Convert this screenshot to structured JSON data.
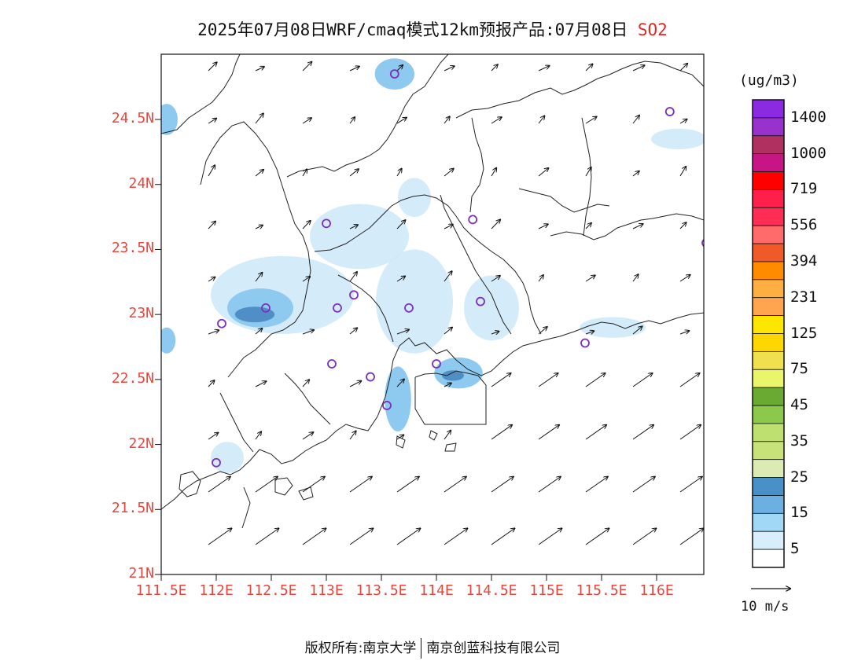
{
  "title": {
    "main": "2025年07月08日WRF/cmaq模式12km预报产品:07月08日",
    "pollutant": "SO2"
  },
  "axes": {
    "lat_labels": [
      "24.5N",
      "24N",
      "23.5N",
      "23N",
      "22.5N",
      "22N",
      "21.5N",
      "21N"
    ],
    "lat_values": [
      24.5,
      24.0,
      23.5,
      23.0,
      22.5,
      22.0,
      21.5,
      21.0
    ],
    "lon_labels": [
      "111.5E",
      "112E",
      "112.5E",
      "113E",
      "113.5E",
      "114E",
      "114.5E",
      "115E",
      "115.5E",
      "116E"
    ],
    "lon_values": [
      111.5,
      112.0,
      112.5,
      113.0,
      113.5,
      114.0,
      114.5,
      115.0,
      115.5,
      116.0
    ]
  },
  "colorbar": {
    "unit": "(ug/m3)",
    "labels": [
      "1400",
      "1000",
      "719",
      "556",
      "394",
      "231",
      "125",
      "75",
      "45",
      "35",
      "25",
      "15",
      "5"
    ],
    "colors_top_to_bottom": [
      "#8a2be2",
      "#9932cc",
      "#b03060",
      "#c71585",
      "#ff0000",
      "#ff1f4b",
      "#ff2d55",
      "#ff6a6a",
      "#f05a28",
      "#ff8c00",
      "#ffae42",
      "#ffa54f",
      "#ffe600",
      "#ffd700",
      "#f0e050",
      "#eaf56a",
      "#6aaa32",
      "#8cc84b",
      "#bde070",
      "#c8e27a",
      "#dcebb4",
      "#4a90c8",
      "#6bb0e0",
      "#a0d8f5",
      "#d8eefa",
      "#ffffff"
    ]
  },
  "vector_reference": {
    "label": "10 m/s"
  },
  "footer": {
    "left": "版权所有:南京大学",
    "right": "南京创蓝科技有限公司"
  },
  "map_data": {
    "type": "contour-map",
    "variable": "SO2",
    "lon_range": [
      111.5,
      116.6
    ],
    "lat_range": [
      21.0,
      25.0
    ],
    "concentration_blobs": [
      {
        "lon": 112.6,
        "lat": 23.15,
        "rlon": 0.65,
        "rlat": 0.3,
        "level": "light"
      },
      {
        "lon": 112.4,
        "lat": 23.05,
        "rlon": 0.3,
        "rlat": 0.15,
        "level": "medium"
      },
      {
        "lon": 112.35,
        "lat": 23.0,
        "rlon": 0.18,
        "rlat": 0.06,
        "level": "dark"
      },
      {
        "lon": 113.3,
        "lat": 23.6,
        "rlon": 0.45,
        "rlat": 0.25,
        "level": "light"
      },
      {
        "lon": 113.8,
        "lat": 23.1,
        "rlon": 0.35,
        "rlat": 0.4,
        "level": "light"
      },
      {
        "lon": 114.5,
        "lat": 23.05,
        "rlon": 0.25,
        "rlat": 0.25,
        "level": "light"
      },
      {
        "lon": 114.2,
        "lat": 22.55,
        "rlon": 0.22,
        "rlat": 0.12,
        "level": "medium"
      },
      {
        "lon": 114.15,
        "lat": 22.53,
        "rlon": 0.1,
        "rlat": 0.04,
        "level": "dark"
      },
      {
        "lon": 113.65,
        "lat": 22.35,
        "rlon": 0.12,
        "rlat": 0.25,
        "level": "medium"
      },
      {
        "lon": 113.62,
        "lat": 24.85,
        "rlon": 0.18,
        "rlat": 0.12,
        "level": "medium"
      },
      {
        "lon": 111.55,
        "lat": 24.5,
        "rlon": 0.1,
        "rlat": 0.12,
        "level": "medium"
      },
      {
        "lon": 111.55,
        "lat": 22.8,
        "rlon": 0.08,
        "rlat": 0.1,
        "level": "medium"
      },
      {
        "lon": 115.6,
        "lat": 22.9,
        "rlon": 0.3,
        "rlat": 0.08,
        "level": "light"
      },
      {
        "lon": 116.2,
        "lat": 24.35,
        "rlon": 0.25,
        "rlat": 0.08,
        "level": "light"
      },
      {
        "lon": 112.1,
        "lat": 21.9,
        "rlon": 0.15,
        "rlat": 0.12,
        "level": "light"
      },
      {
        "lon": 113.8,
        "lat": 23.9,
        "rlon": 0.15,
        "rlat": 0.15,
        "level": "light"
      }
    ],
    "stations": [
      {
        "lon": 113.62,
        "lat": 24.85
      },
      {
        "lon": 116.12,
        "lat": 24.56
      },
      {
        "lon": 113.0,
        "lat": 23.7
      },
      {
        "lon": 114.33,
        "lat": 23.73
      },
      {
        "lon": 116.45,
        "lat": 23.55
      },
      {
        "lon": 112.45,
        "lat": 23.05
      },
      {
        "lon": 112.05,
        "lat": 22.93
      },
      {
        "lon": 113.1,
        "lat": 23.05
      },
      {
        "lon": 113.25,
        "lat": 23.15
      },
      {
        "lon": 113.75,
        "lat": 23.05
      },
      {
        "lon": 114.4,
        "lat": 23.1
      },
      {
        "lon": 115.35,
        "lat": 22.78
      },
      {
        "lon": 113.05,
        "lat": 22.62
      },
      {
        "lon": 113.4,
        "lat": 22.52
      },
      {
        "lon": 114.0,
        "lat": 22.62
      },
      {
        "lon": 113.55,
        "lat": 22.3
      },
      {
        "lon": 112.0,
        "lat": 21.86
      }
    ],
    "wind_field": "south-west monsoon flow, stronger over the sea"
  }
}
